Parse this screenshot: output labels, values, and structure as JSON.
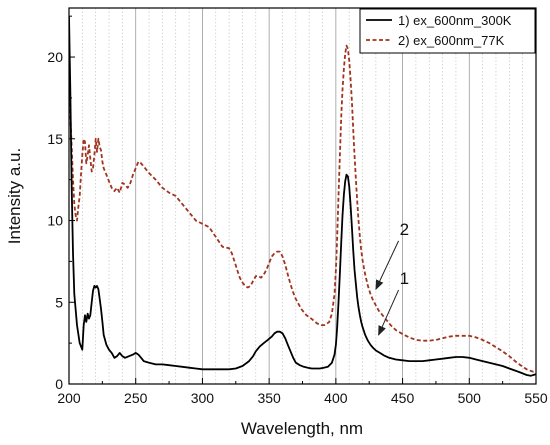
{
  "chart_data": {
    "type": "line",
    "title": "",
    "xlabel": "Wavelength, nm",
    "ylabel": "Intensity a.u.",
    "xlim": [
      200,
      550
    ],
    "ylim": [
      0,
      23
    ],
    "xticks": [
      200,
      250,
      300,
      350,
      400,
      450,
      500,
      550
    ],
    "yticks": [
      0,
      5,
      10,
      15,
      20
    ],
    "major_grid_x": [
      250,
      300,
      350,
      400,
      450,
      500
    ],
    "minor_grid_step": 10,
    "legend_position": "top-right",
    "series": [
      {
        "name": "1) ex_600nm_300K",
        "color": "#000000",
        "style": "solid",
        "x": [
          200,
          201,
          202,
          203,
          204,
          206,
          208,
          210,
          211,
          212,
          213,
          214,
          215,
          216,
          217,
          218,
          219,
          220,
          221,
          222,
          223,
          224,
          225,
          226,
          228,
          230,
          232,
          234,
          236,
          238,
          240,
          242,
          245,
          248,
          250,
          252,
          254,
          256,
          260,
          265,
          270,
          275,
          280,
          285,
          290,
          295,
          300,
          305,
          310,
          315,
          320,
          325,
          330,
          335,
          338,
          340,
          343,
          346,
          349,
          352,
          354,
          356,
          358,
          360,
          362,
          364,
          366,
          368,
          370,
          373,
          376,
          379,
          382,
          385,
          388,
          391,
          394,
          397,
          399,
          400,
          401,
          402,
          403,
          404,
          405,
          406,
          407,
          408,
          409,
          410,
          411,
          412,
          413,
          414,
          415,
          416,
          417,
          418,
          419,
          420,
          422,
          424,
          426,
          428,
          430,
          433,
          436,
          440,
          445,
          450,
          455,
          460,
          465,
          470,
          475,
          480,
          485,
          490,
          495,
          500,
          505,
          510,
          515,
          520,
          525,
          530,
          535,
          540,
          543,
          546,
          548,
          550
        ],
        "y": [
          22.5,
          18.0,
          12.0,
          8.0,
          5.5,
          3.6,
          2.5,
          2.1,
          3.6,
          4.2,
          3.8,
          4.3,
          4.0,
          4.2,
          5.0,
          5.7,
          6.0,
          5.9,
          6.0,
          5.8,
          5.2,
          4.6,
          3.8,
          3.0,
          2.4,
          2.1,
          1.9,
          1.6,
          1.7,
          1.9,
          1.7,
          1.6,
          1.7,
          1.8,
          1.9,
          1.8,
          1.6,
          1.4,
          1.3,
          1.2,
          1.2,
          1.15,
          1.1,
          1.05,
          1.0,
          0.95,
          0.9,
          0.9,
          0.9,
          0.9,
          0.9,
          0.95,
          1.1,
          1.4,
          1.7,
          2.0,
          2.3,
          2.5,
          2.7,
          2.9,
          3.1,
          3.2,
          3.2,
          3.1,
          2.8,
          2.4,
          2.0,
          1.6,
          1.3,
          1.15,
          1.05,
          1.0,
          0.95,
          0.95,
          0.95,
          1.0,
          1.05,
          1.3,
          1.8,
          2.4,
          3.5,
          5.0,
          6.8,
          8.6,
          10.3,
          11.6,
          12.4,
          12.8,
          12.7,
          12.1,
          11.0,
          9.6,
          8.2,
          7.0,
          6.1,
          5.3,
          4.7,
          4.2,
          3.8,
          3.5,
          3.0,
          2.65,
          2.4,
          2.2,
          2.05,
          1.9,
          1.75,
          1.6,
          1.5,
          1.45,
          1.4,
          1.4,
          1.4,
          1.45,
          1.5,
          1.55,
          1.6,
          1.65,
          1.65,
          1.6,
          1.5,
          1.4,
          1.3,
          1.2,
          1.1,
          0.95,
          0.8,
          0.65,
          0.55,
          0.5,
          0.55,
          0.6
        ]
      },
      {
        "name": "2) ex_600nm_77K",
        "color": "#a0341f",
        "style": "dashed",
        "x": [
          200,
          201,
          202,
          203,
          204,
          205,
          206,
          207,
          208,
          209,
          210,
          211,
          212,
          213,
          214,
          215,
          216,
          217,
          218,
          219,
          220,
          221,
          222,
          223,
          224,
          225,
          226,
          228,
          230,
          232,
          234,
          236,
          238,
          240,
          242,
          244,
          246,
          248,
          250,
          252,
          254,
          256,
          258,
          260,
          265,
          270,
          275,
          280,
          285,
          290,
          295,
          300,
          305,
          310,
          315,
          320,
          322,
          324,
          326,
          328,
          330,
          332,
          334,
          336,
          338,
          340,
          342,
          344,
          346,
          348,
          350,
          352,
          354,
          356,
          358,
          360,
          362,
          364,
          366,
          368,
          370,
          372,
          374,
          376,
          378,
          380,
          383,
          386,
          389,
          392,
          395,
          397,
          399,
          400,
          401,
          402,
          403,
          404,
          405,
          406,
          407,
          408,
          409,
          410,
          411,
          412,
          413,
          414,
          415,
          416,
          417,
          418,
          419,
          420,
          421,
          422,
          424,
          426,
          428,
          430,
          432,
          435,
          438,
          441,
          445,
          450,
          455,
          460,
          465,
          470,
          475,
          480,
          485,
          490,
          495,
          500,
          505,
          510,
          515,
          520,
          525,
          530,
          535,
          540,
          543,
          546,
          548,
          550
        ],
        "y": [
          18.0,
          16.5,
          14.5,
          12.5,
          11.0,
          10.3,
          10.0,
          10.8,
          11.5,
          12.8,
          14.0,
          15.0,
          14.8,
          13.5,
          14.0,
          14.6,
          13.8,
          13.0,
          13.2,
          14.0,
          15.0,
          14.2,
          15.0,
          14.5,
          14.3,
          13.6,
          13.2,
          12.8,
          12.4,
          12.0,
          11.8,
          12.0,
          11.7,
          12.3,
          12.2,
          12.0,
          12.3,
          12.8,
          13.2,
          13.6,
          13.5,
          13.3,
          13.1,
          12.9,
          12.5,
          12.0,
          11.7,
          11.5,
          11.0,
          10.5,
          10.0,
          9.8,
          9.6,
          9.0,
          8.4,
          8.3,
          8.0,
          7.5,
          7.0,
          6.5,
          6.2,
          6.0,
          5.9,
          6.0,
          6.3,
          6.6,
          6.6,
          6.5,
          6.7,
          7.0,
          7.4,
          7.8,
          8.0,
          8.1,
          8.1,
          7.8,
          7.3,
          6.7,
          6.1,
          5.6,
          5.2,
          4.9,
          4.6,
          4.4,
          4.2,
          4.1,
          3.9,
          3.7,
          3.6,
          3.6,
          3.8,
          4.3,
          5.5,
          7.0,
          9.0,
          11.5,
          14.0,
          16.3,
          18.0,
          19.3,
          20.2,
          20.7,
          20.5,
          19.8,
          18.7,
          17.3,
          15.6,
          14.0,
          12.5,
          11.2,
          10.0,
          9.0,
          8.2,
          7.6,
          7.1,
          6.7,
          6.0,
          5.5,
          5.1,
          4.8,
          4.5,
          4.2,
          3.9,
          3.6,
          3.3,
          3.05,
          2.85,
          2.7,
          2.65,
          2.65,
          2.7,
          2.8,
          2.9,
          2.95,
          2.95,
          2.95,
          2.85,
          2.7,
          2.5,
          2.25,
          2.0,
          1.7,
          1.35,
          1.05,
          0.9,
          0.8,
          0.75,
          0.8
        ]
      }
    ],
    "annotations": [
      {
        "text": "2",
        "target_x": 430,
        "target_y": 5.8,
        "text_x": 450,
        "text_y": 9.0
      },
      {
        "text": "1",
        "target_x": 432,
        "target_y": 3.0,
        "text_x": 450,
        "text_y": 6.0
      }
    ]
  }
}
